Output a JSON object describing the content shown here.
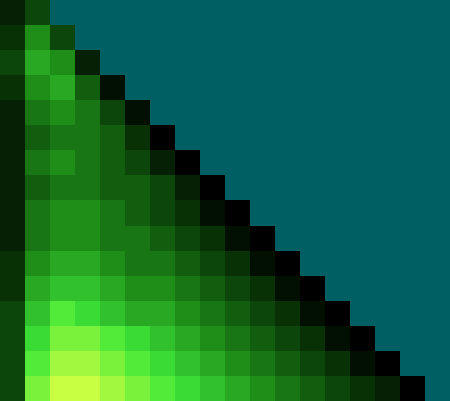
{
  "chart_data": {
    "type": "heatmap",
    "tick_labels": false,
    "color": "#005f63",
    "cells": [
      [
        0.2,
        0.3,
        null,
        null,
        null,
        null,
        null,
        null,
        null,
        null,
        null,
        null,
        null,
        null,
        null,
        null,
        null,
        null
      ],
      [
        0.25,
        0.45,
        0.3,
        null,
        null,
        null,
        null,
        null,
        null,
        null,
        null,
        null,
        null,
        null,
        null,
        null,
        null,
        null
      ],
      [
        0.3,
        0.5,
        0.45,
        0.2,
        null,
        null,
        null,
        null,
        null,
        null,
        null,
        null,
        null,
        null,
        null,
        null,
        null,
        null
      ],
      [
        0.25,
        0.45,
        0.5,
        0.35,
        0.15,
        null,
        null,
        null,
        null,
        null,
        null,
        null,
        null,
        null,
        null,
        null,
        null,
        null
      ],
      [
        0.2,
        0.4,
        0.45,
        0.4,
        0.3,
        0.15,
        null,
        null,
        null,
        null,
        null,
        null,
        null,
        null,
        null,
        null,
        null,
        null
      ],
      [
        0.2,
        0.35,
        0.4,
        0.4,
        0.35,
        0.25,
        0.1,
        null,
        null,
        null,
        null,
        null,
        null,
        null,
        null,
        null,
        null,
        null
      ],
      [
        0.2,
        0.4,
        0.45,
        0.4,
        0.35,
        0.3,
        0.2,
        0.1,
        null,
        null,
        null,
        null,
        null,
        null,
        null,
        null,
        null,
        null
      ],
      [
        0.2,
        0.35,
        0.4,
        0.4,
        0.35,
        0.35,
        0.3,
        0.2,
        0.1,
        null,
        null,
        null,
        null,
        null,
        null,
        null,
        null,
        null
      ],
      [
        0.2,
        0.4,
        0.45,
        0.45,
        0.4,
        0.35,
        0.3,
        0.25,
        0.15,
        0.1,
        null,
        null,
        null,
        null,
        null,
        null,
        null,
        null
      ],
      [
        0.2,
        0.4,
        0.45,
        0.45,
        0.4,
        0.4,
        0.35,
        0.3,
        0.25,
        0.15,
        0.1,
        null,
        null,
        null,
        null,
        null,
        null,
        null
      ],
      [
        0.25,
        0.45,
        0.5,
        0.5,
        0.45,
        0.4,
        0.4,
        0.35,
        0.3,
        0.25,
        0.15,
        0.1,
        null,
        null,
        null,
        null,
        null,
        null
      ],
      [
        0.25,
        0.5,
        0.55,
        0.55,
        0.5,
        0.45,
        0.45,
        0.4,
        0.35,
        0.3,
        0.25,
        0.15,
        0.1,
        null,
        null,
        null,
        null,
        null
      ],
      [
        0.3,
        0.55,
        0.65,
        0.6,
        0.55,
        0.5,
        0.5,
        0.45,
        0.4,
        0.35,
        0.3,
        0.25,
        0.15,
        0.1,
        null,
        null,
        null,
        null
      ],
      [
        0.3,
        0.6,
        0.7,
        0.7,
        0.65,
        0.6,
        0.55,
        0.5,
        0.45,
        0.4,
        0.35,
        0.3,
        0.25,
        0.15,
        0.1,
        null,
        null,
        null
      ],
      [
        0.3,
        0.65,
        0.75,
        0.75,
        0.7,
        0.65,
        0.6,
        0.55,
        0.5,
        0.45,
        0.4,
        0.35,
        0.3,
        0.25,
        0.15,
        0.1,
        null,
        null
      ],
      [
        0.3,
        0.7,
        0.8,
        0.8,
        0.75,
        0.7,
        0.65,
        0.6,
        0.55,
        0.5,
        0.45,
        0.4,
        0.35,
        0.3,
        0.25,
        0.2,
        0.1,
        null
      ]
    ]
  }
}
